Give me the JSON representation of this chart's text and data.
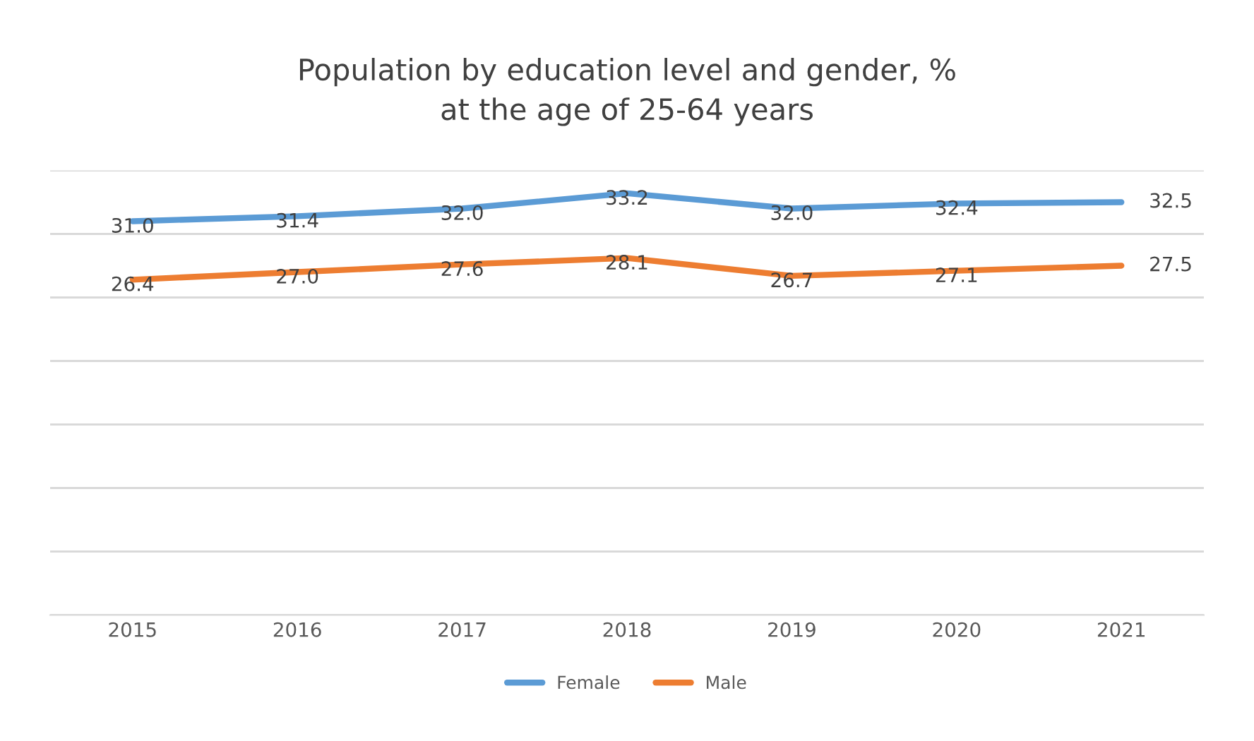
{
  "chart_data": {
    "type": "line",
    "title": "Population by education level and gender, %\nat the age of 25-64 years",
    "categories": [
      "2015",
      "2016",
      "2017",
      "2018",
      "2019",
      "2020",
      "2021"
    ],
    "series": [
      {
        "name": "Female",
        "color": "#5b9bd5",
        "values": [
          31.0,
          31.4,
          32.0,
          33.2,
          32.0,
          32.4,
          32.5
        ],
        "value_labels": [
          "31.0",
          "31.4",
          "32.0",
          "33.2",
          "32.0",
          "32.4",
          "32.5"
        ]
      },
      {
        "name": "Male",
        "color": "#ed7d31",
        "values": [
          26.4,
          27.0,
          27.6,
          28.1,
          26.7,
          27.1,
          27.5
        ],
        "value_labels": [
          "26.4",
          "27.0",
          "27.6",
          "28.1",
          "26.7",
          "27.1",
          "27.5"
        ]
      }
    ],
    "ylim": [
      0,
      35
    ],
    "yticks": [
      {
        "value": 0,
        "label": null
      },
      {
        "value": 5,
        "label": null
      },
      {
        "value": 10,
        "label": null
      },
      {
        "value": 15,
        "label": null
      },
      {
        "value": 20,
        "label": null
      },
      {
        "value": 25,
        "label": null
      },
      {
        "value": 30,
        "label": null
      },
      {
        "value": 35,
        "label": null
      }
    ],
    "grid": "y",
    "tick_labels": "x",
    "legend": "bottom",
    "marker": "none",
    "line_style": "solid"
  }
}
